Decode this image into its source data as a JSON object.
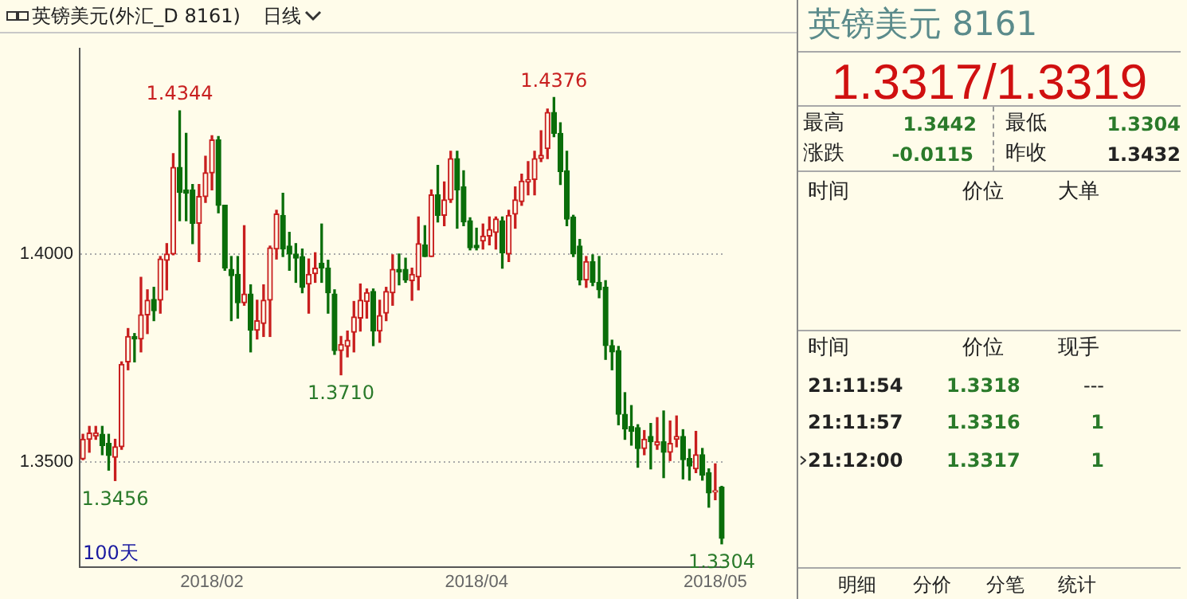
{
  "chart_data": [
    {
      "type": "candlestick",
      "title": "英镑美元(外汇_D 8161)",
      "subtitle": "日线",
      "categories": [
        null,
        null,
        null,
        null,
        null,
        null,
        null,
        null,
        null,
        null,
        null,
        null,
        null,
        null,
        null,
        null,
        null,
        null,
        null,
        null,
        "2018/02",
        null,
        null,
        null,
        null,
        null,
        null,
        null,
        null,
        null,
        null,
        null,
        null,
        null,
        null,
        null,
        null,
        null,
        null,
        null,
        null,
        null,
        null,
        null,
        null,
        null,
        null,
        null,
        null,
        null,
        null,
        null,
        null,
        null,
        null,
        null,
        null,
        null,
        null,
        null,
        null,
        "2018/04",
        null,
        null,
        null,
        null,
        null,
        null,
        null,
        null,
        null,
        null,
        null,
        null,
        null,
        null,
        null,
        null,
        null,
        null,
        null,
        null,
        null,
        null,
        null,
        null,
        null,
        null,
        null,
        null,
        null,
        null,
        null,
        null,
        null,
        null,
        null,
        null,
        "2018/05",
        null
      ],
      "ohlc": [
        [
          1.3508,
          1.3567,
          1.3506,
          1.3555
        ],
        [
          1.3555,
          1.3586,
          1.3524,
          1.357
        ],
        [
          1.3563,
          1.3586,
          1.3555,
          1.357
        ],
        [
          1.3567,
          1.3586,
          1.3518,
          1.354
        ],
        [
          1.3545,
          1.3567,
          1.3481,
          1.3516
        ],
        [
          1.3512,
          1.3555,
          1.3456,
          1.3537
        ],
        [
          1.3537,
          1.3741,
          1.3531,
          1.3735
        ],
        [
          1.3741,
          1.3821,
          1.3722,
          1.3802
        ],
        [
          1.3802,
          1.3809,
          1.3741,
          1.3796
        ],
        [
          1.3796,
          1.3944,
          1.3765,
          1.3854
        ],
        [
          1.3854,
          1.3914,
          1.3809,
          1.3889
        ],
        [
          1.3891,
          1.392,
          1.384,
          1.3864
        ],
        [
          1.3889,
          1.3994,
          1.3858,
          1.3988
        ],
        [
          1.3985,
          1.4025,
          1.3914,
          1.4
        ],
        [
          1.4,
          1.4241,
          1.3998,
          1.4208
        ],
        [
          1.4208,
          1.4344,
          1.408,
          1.4148
        ],
        [
          1.4154,
          1.429,
          1.408,
          1.4146
        ],
        [
          1.4154,
          1.4167,
          1.4025,
          1.4074
        ],
        [
          1.4074,
          1.4167,
          1.3982,
          1.4138
        ],
        [
          1.4138,
          1.4235,
          1.4124,
          1.4195
        ],
        [
          1.4195,
          1.4284,
          1.4154,
          1.4274
        ],
        [
          1.4274,
          1.4282,
          1.4099,
          1.4117
        ],
        [
          1.4117,
          1.4117,
          1.3961,
          1.3966
        ],
        [
          1.3963,
          1.3994,
          1.384,
          1.3948
        ],
        [
          1.3951,
          1.3994,
          1.3846,
          1.3883
        ],
        [
          1.3883,
          1.4068,
          1.3877,
          1.3904
        ],
        [
          1.3904,
          1.3926,
          1.3765,
          1.3817
        ],
        [
          1.3817,
          1.3889,
          1.3796,
          1.384
        ],
        [
          1.3833,
          1.3926,
          1.3802,
          1.3889
        ],
        [
          1.3889,
          1.4019,
          1.3802,
          1.4015
        ],
        [
          1.4012,
          1.4105,
          1.3988,
          1.4096
        ],
        [
          1.4093,
          1.4146,
          1.3994,
          1.4012
        ],
        [
          1.4019,
          1.4052,
          1.3961,
          1.4
        ],
        [
          1.4,
          1.4025,
          1.3932,
          1.399
        ],
        [
          1.3994,
          1.4012,
          1.3907,
          1.392
        ],
        [
          1.3928,
          1.3988,
          1.3858,
          1.3951
        ],
        [
          1.3953,
          1.4003,
          1.3932,
          1.3966
        ],
        [
          1.3978,
          1.4072,
          1.3932,
          1.3966
        ],
        [
          1.3966,
          1.3985,
          1.3858,
          1.3907
        ],
        [
          1.3904,
          1.3914,
          1.3759,
          1.3768
        ],
        [
          1.3768,
          1.3802,
          1.371,
          1.3783
        ],
        [
          1.3778,
          1.3815,
          1.3753,
          1.3793
        ],
        [
          1.3812,
          1.3886,
          1.3765,
          1.3849
        ],
        [
          1.3846,
          1.3928,
          1.3815,
          1.3889
        ],
        [
          1.3886,
          1.3916,
          1.3846,
          1.3907
        ],
        [
          1.391,
          1.3916,
          1.378,
          1.3815
        ],
        [
          1.3815,
          1.3889,
          1.3788,
          1.3852
        ],
        [
          1.3858,
          1.392,
          1.384,
          1.391
        ],
        [
          1.3907,
          1.3998,
          1.3877,
          1.3963
        ],
        [
          1.3963,
          1.4,
          1.3926,
          1.3957
        ],
        [
          1.3963,
          1.399,
          1.3932,
          1.3938
        ],
        [
          1.3936,
          1.3966,
          1.3889,
          1.3951
        ],
        [
          1.3945,
          1.4089,
          1.3914,
          1.4025
        ],
        [
          1.4022,
          1.4068,
          1.3994,
          1.3994
        ],
        [
          1.3994,
          1.4154,
          1.3994,
          1.4142
        ],
        [
          1.4142,
          1.4213,
          1.4077,
          1.4093
        ],
        [
          1.4093,
          1.4173,
          1.4068,
          1.413
        ],
        [
          1.413,
          1.4247,
          1.4124,
          1.4229
        ],
        [
          1.4229,
          1.4247,
          1.4062,
          1.4154
        ],
        [
          1.4161,
          1.42,
          1.4068,
          1.4077
        ],
        [
          1.408,
          1.4087,
          1.401,
          1.4015
        ],
        [
          1.4021,
          1.4062,
          1.401,
          1.4015
        ],
        [
          1.4031,
          1.4072,
          1.4012,
          1.4043
        ],
        [
          1.4043,
          1.4089,
          1.4022,
          1.4059
        ],
        [
          1.4052,
          1.4089,
          1.4012,
          1.4084
        ],
        [
          1.408,
          1.4089,
          1.3966,
          1.4003
        ],
        [
          1.4,
          1.4105,
          1.3982,
          1.4093
        ],
        [
          1.4096,
          1.4161,
          1.4062,
          1.413
        ],
        [
          1.4126,
          1.4192,
          1.4117,
          1.4175
        ],
        [
          1.4173,
          1.4222,
          1.4142,
          1.4179
        ],
        [
          1.4179,
          1.4247,
          1.4142,
          1.4229
        ],
        [
          1.4229,
          1.4296,
          1.4222,
          1.4237
        ],
        [
          1.4253,
          1.4348,
          1.4229,
          1.434
        ],
        [
          1.434,
          1.4376,
          1.4282,
          1.429
        ],
        [
          1.429,
          1.4315,
          1.4167,
          1.4198
        ],
        [
          1.42,
          1.4247,
          1.4068,
          1.4084
        ],
        [
          1.4089,
          1.4093,
          1.3994,
          1.4
        ],
        [
          1.4019,
          1.4035,
          1.3926,
          1.3938
        ],
        [
          1.3938,
          1.3994,
          1.392,
          1.3982
        ],
        [
          1.3982,
          1.3998,
          1.3924,
          1.3932
        ],
        [
          1.3932,
          1.3994,
          1.3895,
          1.3914
        ],
        [
          1.392,
          1.3936,
          1.3747,
          1.378
        ],
        [
          1.378,
          1.3793,
          1.3722,
          1.3765
        ],
        [
          1.3768,
          1.3778,
          1.359,
          1.3615
        ],
        [
          1.3615,
          1.3667,
          1.3555,
          1.358
        ],
        [
          1.3586,
          1.3636,
          1.3541,
          1.3574
        ],
        [
          1.3583,
          1.359,
          1.3488,
          1.3533
        ],
        [
          1.3533,
          1.3576,
          1.3518,
          1.3555
        ],
        [
          1.3562,
          1.3593,
          1.3484,
          1.3549
        ],
        [
          1.3541,
          1.3607,
          1.3531,
          1.3549
        ],
        [
          1.3549,
          1.3623,
          1.3463,
          1.3524
        ],
        [
          1.3524,
          1.3599,
          1.3504,
          1.3545
        ],
        [
          1.3555,
          1.3611,
          1.3537,
          1.3562
        ],
        [
          1.3562,
          1.3578,
          1.346,
          1.3506
        ],
        [
          1.3509,
          1.3531,
          1.3457,
          1.3491
        ],
        [
          1.3484,
          1.3574,
          1.3475,
          1.3518
        ],
        [
          1.3518,
          1.3533,
          1.3457,
          1.3469
        ],
        [
          1.3475,
          1.3484,
          1.3392,
          1.3426
        ],
        [
          1.3428,
          1.3496,
          1.341,
          1.3432
        ],
        [
          1.344,
          1.3442,
          1.3304,
          1.3317
        ]
      ],
      "colors": [
        "#c81e1e",
        "#c81e1e",
        "#c81e1e",
        "#0a6e0a",
        "#0a6e0a",
        "#c81e1e",
        "#c81e1e",
        "#c81e1e",
        "#0a6e0a",
        "#c81e1e",
        "#c81e1e",
        "#0a6e0a",
        "#c81e1e",
        "#c81e1e",
        "#c81e1e",
        "#0a6e0a",
        "#0a6e0a",
        "#0a6e0a",
        "#c81e1e",
        "#c81e1e",
        "#c81e1e",
        "#0a6e0a",
        "#0a6e0a",
        "#0a6e0a",
        "#0a6e0a",
        "#c81e1e",
        "#0a6e0a",
        "#c81e1e",
        "#c81e1e",
        "#c81e1e",
        "#c81e1e",
        "#0a6e0a",
        "#0a6e0a",
        "#0a6e0a",
        "#0a6e0a",
        "#c81e1e",
        "#c81e1e",
        "#0a6e0a",
        "#0a6e0a",
        "#0a6e0a",
        "#c81e1e",
        "#c81e1e",
        "#c81e1e",
        "#c81e1e",
        "#c81e1e",
        "#0a6e0a",
        "#c81e1e",
        "#c81e1e",
        "#c81e1e",
        "#0a6e0a",
        "#0a6e0a",
        "#c81e1e",
        "#c81e1e",
        "#0a6e0a",
        "#c81e1e",
        "#0a6e0a",
        "#c81e1e",
        "#c81e1e",
        "#0a6e0a",
        "#0a6e0a",
        "#0a6e0a",
        "#0a6e0a",
        "#c81e1e",
        "#c81e1e",
        "#c81e1e",
        "#0a6e0a",
        "#c81e1e",
        "#c81e1e",
        "#c81e1e",
        "#c81e1e",
        "#c81e1e",
        "#c81e1e",
        "#c81e1e",
        "#0a6e0a",
        "#0a6e0a",
        "#0a6e0a",
        "#0a6e0a",
        "#0a6e0a",
        "#c81e1e",
        "#0a6e0a",
        "#0a6e0a",
        "#0a6e0a",
        "#0a6e0a",
        "#0a6e0a",
        "#0a6e0a",
        "#0a6e0a",
        "#0a6e0a",
        "#c81e1e",
        "#0a6e0a",
        "#c81e1e",
        "#0a6e0a",
        "#c81e1e",
        "#c81e1e",
        "#0a6e0a",
        "#0a6e0a",
        "#c81e1e",
        "#0a6e0a",
        "#0a6e0a",
        "#c81e1e",
        "#0a6e0a"
      ],
      "ylim": [
        1.3248,
        1.4493
      ],
      "yticks": [
        {
          "value": 1.35,
          "label": "1.3500"
        },
        {
          "value": 1.4,
          "label": "1.4000"
        }
      ],
      "grid": "y",
      "annotations": [
        {
          "text": "1.4344",
          "y": 1.4344
        },
        {
          "text": "1.4376",
          "y": 1.4376
        },
        {
          "text": "1.3710",
          "y": 1.371
        },
        {
          "text": "1.3456",
          "y": 1.3456
        },
        {
          "text": "1.3304",
          "y": 1.3304
        },
        "100天"
      ]
    },
    {
      "type": "other",
      "title": "英镑美元 8161",
      "annotations": [
        "1.3317/1.3319",
        "最高",
        "1.3442",
        "最低",
        "1.3304",
        "涨跌",
        "-0.0115",
        "昨收",
        "1.3432",
        "时间",
        "价位",
        "大单",
        "时间",
        "价位",
        "现手",
        "21:11:54",
        "1.3318",
        "---",
        "21:11:57",
        "1.3316",
        "1",
        "21:12:00",
        "1.3317",
        "1",
        "明细",
        "分价",
        "分笔",
        "统计"
      ]
    }
  ]
}
